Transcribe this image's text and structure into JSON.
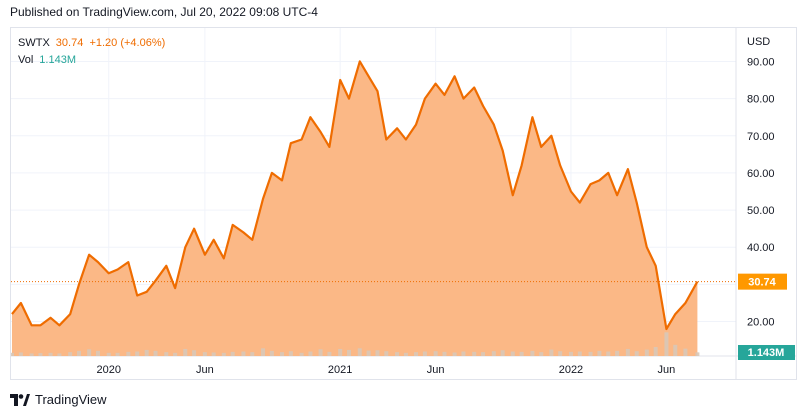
{
  "header": {
    "published": "Published on TradingView.com, Jul 20, 2022 09:08 UTC-4"
  },
  "legend": {
    "symbol": "SWTX",
    "price": "30.74",
    "change": "+1.20 (+4.06%)",
    "vol_label": "Vol",
    "vol_value": "1.143M"
  },
  "footer": {
    "brand": "TradingView"
  },
  "colors": {
    "line": "#ef6c00",
    "fill": "#fbb47f",
    "volume": "#d8c8b8",
    "volume_teal": "#26a69a",
    "price_tag": "#ff9800",
    "vol_tag": "#26a69a",
    "grid": "#f0f3fa"
  },
  "chart_data": {
    "type": "area",
    "currency": "USD",
    "x_tick_labels": [
      "2020",
      "Jun",
      "2021",
      "Jun",
      "2022",
      "Jun"
    ],
    "y_tick_labels": [
      "20.00",
      "30.00",
      "40.00",
      "50.00",
      "60.00",
      "70.00",
      "80.00",
      "90.00"
    ],
    "ylim": [
      11,
      99
    ],
    "last_price_label": "30.74",
    "last_volume_label": "1.143M",
    "series": [
      {
        "dates": [
          "2019-08-01",
          "2019-08-15",
          "2019-09-01",
          "2019-09-15",
          "2019-10-01",
          "2019-10-15",
          "2019-11-01",
          "2019-11-15",
          "2019-12-01",
          "2019-12-15",
          "2020-01-01",
          "2020-01-15",
          "2020-02-01",
          "2020-02-15",
          "2020-03-01",
          "2020-03-15",
          "2020-04-01",
          "2020-04-15",
          "2020-05-01",
          "2020-05-15",
          "2020-06-01",
          "2020-06-15",
          "2020-07-01",
          "2020-07-15",
          "2020-08-01",
          "2020-08-15",
          "2020-09-01",
          "2020-09-15",
          "2020-10-01",
          "2020-10-15",
          "2020-11-01",
          "2020-11-15",
          "2020-12-01",
          "2020-12-15",
          "2021-01-01",
          "2021-01-15",
          "2021-02-01",
          "2021-02-15",
          "2021-03-01",
          "2021-03-15",
          "2021-04-01",
          "2021-04-15",
          "2021-05-01",
          "2021-05-15",
          "2021-06-01",
          "2021-06-15",
          "2021-07-01",
          "2021-07-15",
          "2021-08-01",
          "2021-08-15",
          "2021-09-01",
          "2021-09-15",
          "2021-10-01",
          "2021-10-15",
          "2021-11-01",
          "2021-11-15",
          "2021-12-01",
          "2021-12-15",
          "2022-01-01",
          "2022-01-15",
          "2022-02-01",
          "2022-02-15",
          "2022-03-01",
          "2022-03-15",
          "2022-04-01",
          "2022-04-15",
          "2022-05-01",
          "2022-05-15",
          "2022-06-01",
          "2022-06-15",
          "2022-07-01",
          "2022-07-20"
        ],
        "close": [
          22,
          25,
          19,
          19,
          21,
          19,
          22,
          30,
          38,
          36,
          33,
          34,
          36,
          27,
          28,
          31,
          35,
          29,
          40,
          45,
          38,
          42,
          37,
          46,
          44,
          42,
          53,
          60,
          58,
          68,
          69,
          75,
          71,
          67,
          85,
          80,
          90,
          86,
          82,
          69,
          72,
          69,
          73,
          80,
          84,
          81,
          86,
          80,
          83,
          78,
          73,
          66,
          54,
          62,
          75,
          67,
          70,
          62,
          55,
          52,
          57,
          58,
          60,
          54,
          61,
          52,
          40,
          35,
          18,
          22,
          25,
          30.74
        ],
        "volume": [
          1.0,
          1.1,
          0.8,
          0.9,
          1.0,
          0.8,
          1.2,
          1.6,
          2.1,
          1.6,
          1.0,
          1.0,
          1.3,
          1.4,
          1.9,
          1.6,
          1.2,
          1.0,
          2.2,
          1.8,
          1.2,
          1.1,
          1.0,
          1.3,
          1.4,
          1.2,
          2.4,
          1.6,
          1.2,
          1.5,
          1.0,
          1.4,
          2.1,
          1.3,
          2.2,
          1.9,
          2.4,
          1.7,
          1.8,
          1.5,
          1.2,
          1.0,
          1.2,
          1.4,
          1.5,
          1.3,
          1.1,
          1.4,
          1.3,
          1.2,
          1.5,
          1.8,
          1.4,
          1.3,
          1.6,
          1.2,
          2.0,
          1.5,
          1.3,
          1.4,
          1.3,
          1.6,
          1.4,
          1.6,
          2.2,
          1.5,
          2.0,
          2.8,
          7.4,
          3.5,
          2.3,
          1.143
        ]
      }
    ]
  }
}
